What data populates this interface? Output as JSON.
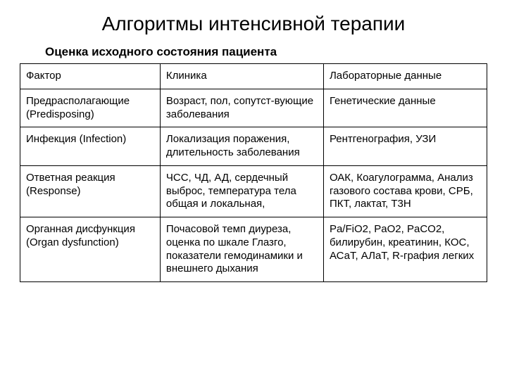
{
  "title": "Алгоритмы интенсивной терапии",
  "subtitle": "Оценка исходного состояния пациента",
  "table": {
    "columns": [
      "Фактор",
      "Клиника",
      "Лабораторные данные"
    ],
    "rows": [
      [
        "Предрасполагающие (Predisposing)",
        "Возраст, пол, сопутст-вующие заболевания",
        "Генетические данные"
      ],
      [
        "Инфекция (Infection)",
        "Локализация поражения, длительность заболевания",
        "Рентгенография, УЗИ"
      ],
      [
        "Ответная реакция (Response)",
        "ЧСС, ЧД, АД, сердечный выброс, температура тела общая и локальная,",
        "ОАК, Коагулограмма, Анализ газового состава крови, СРБ, ПКТ, лактат, Т3Н"
      ],
      [
        "Органная дисфункция (Organ dysfunction)",
        "Почасовой темп диуреза, оценка по шкале Глазго, показатели гемодинамики и внешнего дыхания",
        "Pa/FiO2, PaO2, PaCO2, билирубин, креатинин, КОС, АСаТ, АЛаТ, R-графия легких"
      ]
    ],
    "col_widths": [
      "30%",
      "35%",
      "35%"
    ],
    "border_color": "#000000",
    "background_color": "#ffffff",
    "font_size_header": 15,
    "font_size_cell": 15,
    "title_fontsize": 28,
    "subtitle_fontsize": 17
  }
}
